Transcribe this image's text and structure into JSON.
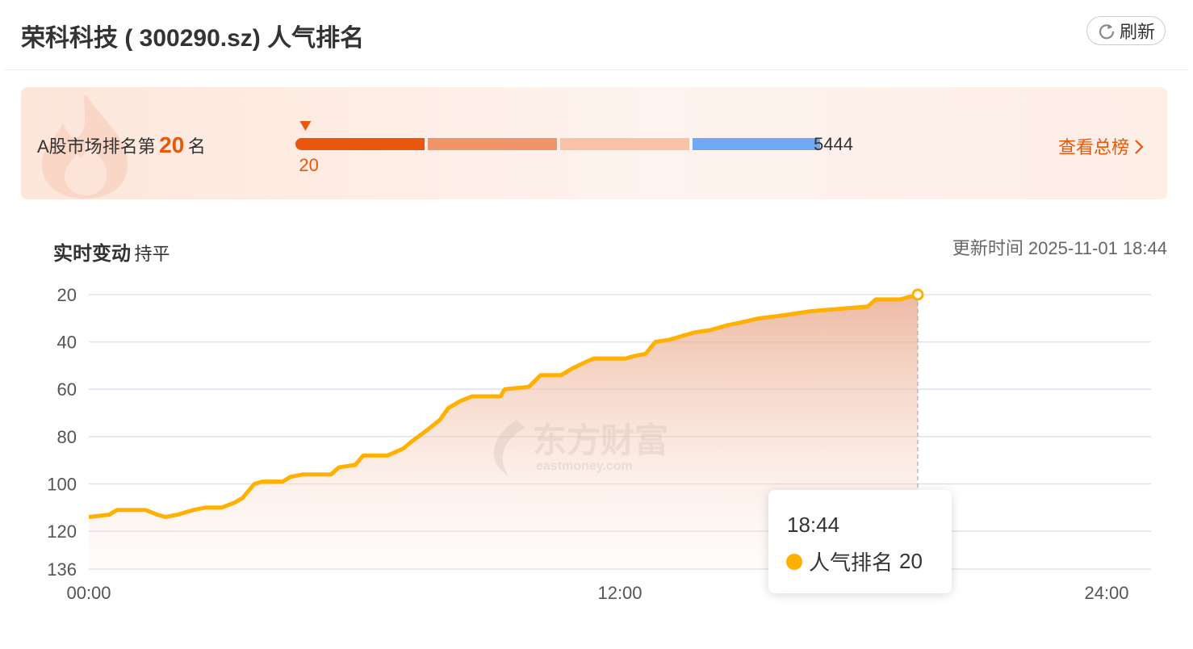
{
  "header": {
    "title": "荣科科技 ( 300290.sz) 人气排名",
    "refresh": "刷新"
  },
  "rank_panel": {
    "prefix": "A股市场排名第",
    "rank": 20,
    "suffix": "名",
    "total": 5444,
    "link": "查看总榜",
    "segment_colors": [
      "#e8570b",
      "#f0956a",
      "#f8c2a6",
      "#6fa8f5"
    ]
  },
  "chart_header": {
    "title": "实时变动",
    "status": "持平",
    "update_time": "更新时间 2025-11-01 18:44"
  },
  "watermark": {
    "name": "东方财富",
    "site": "eastmoney.com"
  },
  "tooltip": {
    "time": "18:44"
  },
  "chart_data": {
    "type": "line",
    "x": [
      0,
      0.46,
      0.64,
      1.28,
      1.55,
      1.73,
      2.0,
      2.37,
      2.64,
      3.0,
      3.28,
      3.47,
      3.74,
      3.92,
      4.38,
      4.56,
      4.83,
      5.47,
      5.65,
      6.02,
      6.2,
      6.75,
      7.11,
      7.3,
      7.66,
      7.93,
      8.12,
      8.39,
      8.66,
      9.3,
      9.4,
      9.94,
      10.21,
      10.67,
      10.94,
      11.4,
      11.95,
      12.13,
      12.31,
      12.58,
      12.8,
      13.13,
      13.68,
      14.04,
      14.41,
      14.68,
      15.14,
      15.59,
      16.32,
      17.6,
      17.78,
      18.33,
      18.73
    ],
    "series": [
      {
        "name": "人气排名",
        "color": "#ffb000",
        "values": [
          114,
          113,
          111,
          111,
          113,
          114,
          113,
          111,
          110,
          110,
          108,
          106,
          100,
          99,
          99,
          97,
          96,
          96,
          93,
          92,
          88,
          88,
          85,
          82,
          77,
          73,
          68,
          65,
          63,
          63,
          60,
          59,
          54,
          54,
          51,
          47,
          47,
          47,
          46,
          45,
          40,
          39,
          36,
          35,
          33,
          32,
          30,
          29,
          27,
          25,
          22,
          22,
          20
        ]
      }
    ],
    "xlim": [
      0,
      24
    ],
    "xticks": [
      {
        "value": 0,
        "label": "00:00"
      },
      {
        "value": 12,
        "label": "12:00"
      },
      {
        "value": 24,
        "label": "24:00"
      }
    ],
    "ylim": [
      20,
      136
    ],
    "yticks": [
      20,
      40,
      60,
      80,
      100,
      120,
      136
    ],
    "y_inverted": true,
    "grid": true
  }
}
